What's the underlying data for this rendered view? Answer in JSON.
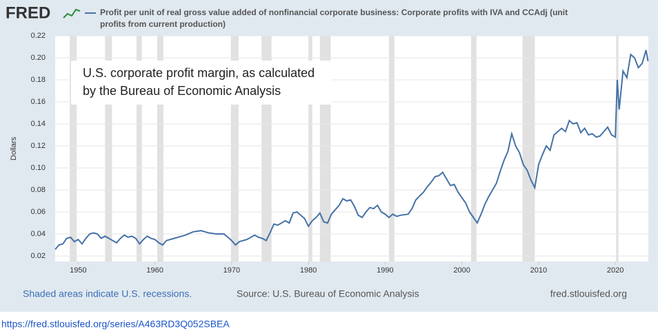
{
  "chart_data": {
    "type": "line",
    "logo": "FRED",
    "title": "Profit per unit of real gross value added of nonfinancial corporate business: Corporate profits with IVA and CCAdj (unit profits from current production)",
    "y_label": "Dollars",
    "annotation": [
      "U.S. corporate profit margin, as calculated",
      "by the Bureau of Economic Analysis"
    ],
    "recession_note": "Shaded areas indicate U.S. recessions.",
    "source": "Source: U.S. Bureau of Economic Analysis",
    "site": "fred.stlouisfed.org",
    "url": "https://fred.stlouisfed.org/series/A463RD3Q052SBEA",
    "xlim": [
      1947,
      2024.3
    ],
    "xticks": [
      1950,
      1960,
      1970,
      1980,
      1990,
      2000,
      2010,
      2020
    ],
    "ylim": [
      0.015,
      0.22
    ],
    "yticks": [
      0.02,
      0.04,
      0.06,
      0.08,
      {
        "value": 0.1,
        "label": "0.10"
      },
      0.12,
      0.14,
      0.16,
      0.18,
      {
        "value": 0.2,
        "label": "0.20"
      },
      0.22
    ],
    "grid": true,
    "recessions": [
      [
        1948.9,
        1949.8
      ],
      [
        1953.5,
        1954.4
      ],
      [
        1957.6,
        1958.3
      ],
      [
        1960.3,
        1961.1
      ],
      [
        1969.9,
        1970.9
      ],
      [
        1973.9,
        1975.2
      ],
      [
        1980,
        1980.5
      ],
      [
        1981.5,
        1982.9
      ],
      [
        1990.5,
        1991.2
      ],
      [
        2001.2,
        2001.9
      ],
      [
        2007.9,
        2009.5
      ],
      [
        2020.1,
        2020.4
      ]
    ],
    "x": [
      1947,
      1947.5,
      1948,
      1948.5,
      1949,
      1949.5,
      1950,
      1950.5,
      1951,
      1951.5,
      1952,
      1952.5,
      1953,
      1953.5,
      1954,
      1954.5,
      1955,
      1955.5,
      1956,
      1956.5,
      1957,
      1957.5,
      1958,
      1958.5,
      1959,
      1959.5,
      1960,
      1960.5,
      1961,
      1961.5,
      1962,
      1963,
      1964,
      1965,
      1966,
      1967,
      1968,
      1969,
      1969.5,
      1970,
      1970.5,
      1971,
      1972,
      1973,
      1973.5,
      1974,
      1974.5,
      1975,
      1975.5,
      1976,
      1977,
      1977.5,
      1978,
      1978.5,
      1979,
      1979.5,
      1980,
      1980.5,
      1981,
      1981.5,
      1982,
      1982.5,
      1983,
      1984,
      1984.5,
      1985,
      1985.5,
      1986,
      1986.5,
      1987,
      1987.5,
      1988,
      1988.5,
      1989,
      1989.5,
      1990,
      1990.5,
      1991,
      1991.5,
      1992,
      1993,
      1993.5,
      1994,
      1995,
      1995.5,
      1996,
      1996.5,
      1997,
      1997.5,
      1998,
      1998.5,
      1999,
      1999.5,
      2000,
      2000.5,
      2001,
      2001.5,
      2002,
      2002.5,
      2003,
      2003.5,
      2004,
      2004.5,
      2005,
      2005.5,
      2006,
      2006.5,
      2007,
      2007.5,
      2008,
      2008.5,
      2009,
      2009.5,
      2010,
      2010.5,
      2011,
      2011.5,
      2012,
      2012.5,
      2013,
      2013.5,
      2014,
      2014.5,
      2015,
      2015.5,
      2016,
      2016.5,
      2017,
      2017.5,
      2018,
      2018.5,
      2019,
      2019.5,
      2020,
      2020.25,
      2020.5,
      2021,
      2021.5,
      2022,
      2022.5,
      2023,
      2023.5,
      2024,
      2024.25
    ],
    "series": [
      {
        "name": "Profit per unit of real gross value added",
        "color": "#4572a7",
        "values": [
          0.026,
          0.03,
          0.031,
          0.036,
          0.037,
          0.033,
          0.035,
          0.031,
          0.036,
          0.04,
          0.041,
          0.04,
          0.036,
          0.038,
          0.036,
          0.034,
          0.032,
          0.036,
          0.039,
          0.037,
          0.038,
          0.036,
          0.031,
          0.035,
          0.038,
          0.036,
          0.035,
          0.032,
          0.03,
          0.034,
          0.035,
          0.037,
          0.039,
          0.042,
          0.043,
          0.041,
          0.04,
          0.04,
          0.037,
          0.034,
          0.03,
          0.033,
          0.035,
          0.039,
          0.037,
          0.036,
          0.034,
          0.041,
          0.049,
          0.048,
          0.052,
          0.05,
          0.059,
          0.06,
          0.057,
          0.054,
          0.047,
          0.052,
          0.055,
          0.059,
          0.051,
          0.05,
          0.058,
          0.066,
          0.072,
          0.07,
          0.071,
          0.065,
          0.057,
          0.055,
          0.06,
          0.064,
          0.063,
          0.066,
          0.06,
          0.058,
          0.055,
          0.058,
          0.056,
          0.057,
          0.058,
          0.063,
          0.071,
          0.078,
          0.083,
          0.087,
          0.092,
          0.093,
          0.096,
          0.09,
          0.084,
          0.085,
          0.078,
          0.073,
          0.068,
          0.06,
          0.055,
          0.05,
          0.058,
          0.067,
          0.074,
          0.08,
          0.086,
          0.097,
          0.107,
          0.115,
          0.131,
          0.12,
          0.114,
          0.103,
          0.098,
          0.089,
          0.082,
          0.103,
          0.112,
          0.12,
          0.116,
          0.13,
          0.133,
          0.136,
          0.133,
          0.143,
          0.14,
          0.141,
          0.132,
          0.136,
          0.13,
          0.131,
          0.128,
          0.129,
          0.133,
          0.137,
          0.13,
          0.128,
          0.18,
          0.153,
          0.188,
          0.182,
          0.203,
          0.2,
          0.191,
          0.195,
          0.207,
          0.197
        ]
      }
    ]
  }
}
